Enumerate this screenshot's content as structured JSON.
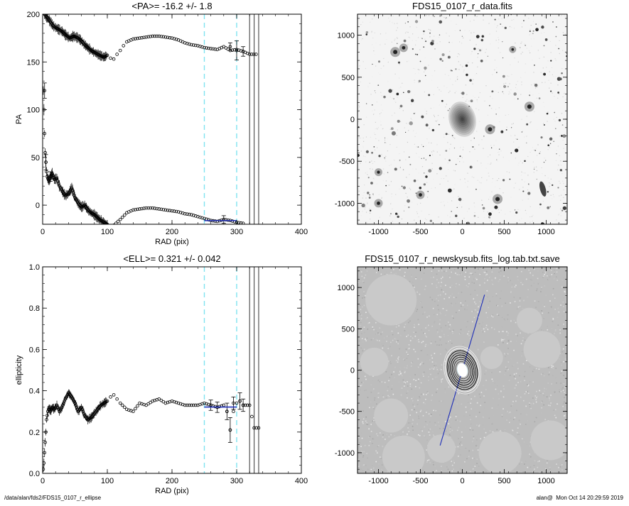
{
  "footer": {
    "path": "/data/alan/fds2/FDS15_0107_r_ellipse",
    "user": "alan@",
    "timestamp": "Mon Oct 14 20:29:59 2019"
  },
  "colors": {
    "data": "#000000",
    "mean_fit": "#1f2fb8",
    "dashed_guides": "#7fe3f0",
    "solid_guides": "#555555",
    "axis_line": "#1f2fb8"
  },
  "chart_data": [
    {
      "id": "pa",
      "type": "scatter",
      "title": "<PA>= -16.2 +/-   1.8",
      "xlabel": "RAD (pix)",
      "ylabel": "PA",
      "xlim": [
        0,
        400
      ],
      "ylim": [
        -20,
        200
      ],
      "xticks": [
        0,
        100,
        200,
        300,
        400
      ],
      "yticks": [
        0,
        50,
        100,
        150,
        200
      ],
      "grid": false,
      "guides": {
        "dashed": [
          250,
          300
        ],
        "solid": [
          320,
          327,
          334
        ]
      },
      "mean_fit": {
        "value": -16.2,
        "x_range": [
          250,
          300
        ]
      },
      "series": [
        {
          "x": [
            3,
            5,
            8,
            12,
            16,
            20,
            25,
            30,
            36,
            42,
            48,
            55,
            60,
            65,
            70,
            75,
            80,
            88,
            95,
            100,
            105,
            110,
            115,
            120,
            125,
            130,
            140,
            150,
            160,
            170,
            180,
            190,
            200,
            210,
            220,
            230,
            240,
            250,
            260,
            270,
            280,
            290,
            300,
            310,
            320,
            330
          ],
          "y": [
            200,
            198,
            196,
            192,
            188,
            186,
            184,
            182,
            178,
            175,
            177,
            175,
            172,
            168,
            165,
            162,
            160,
            157,
            155,
            157,
            154,
            153,
            158,
            162,
            167,
            171,
            174,
            175,
            176,
            177,
            177,
            176,
            175,
            173,
            170,
            168,
            167,
            165,
            164,
            163,
            166,
            162,
            163,
            161,
            158,
            158
          ]
        },
        {
          "x": [
            1,
            2,
            3,
            4,
            5,
            6,
            7,
            8,
            10,
            12,
            15,
            18,
            22,
            26,
            30,
            35,
            40,
            45,
            50,
            55,
            60,
            65,
            70,
            75,
            80,
            88,
            95,
            100,
            105,
            110,
            120,
            130,
            140,
            150,
            160,
            170,
            180,
            190,
            200,
            210,
            220,
            230,
            240,
            250,
            260,
            270,
            280,
            290,
            300,
            310
          ],
          "y": [
            120,
            100,
            75,
            55,
            45,
            35,
            30,
            28,
            25,
            30,
            33,
            27,
            28,
            20,
            15,
            10,
            12,
            18,
            8,
            2,
            -2,
            0,
            -5,
            -8,
            -10,
            -15,
            -18,
            -20,
            -22,
            -21,
            -15,
            -8,
            -5,
            -4,
            -3,
            -3,
            -4,
            -5,
            -6,
            -7,
            -9,
            -10,
            -12,
            -14,
            -16,
            -17,
            -15,
            -16,
            -18,
            -19
          ]
        }
      ],
      "error_bars": [
        {
          "x": 3,
          "y": 120,
          "err": 8
        },
        {
          "x": 5,
          "y": 45,
          "err": 8
        },
        {
          "x": 12,
          "y": 30,
          "err": 5
        },
        {
          "x": 280,
          "y": -15,
          "err": 4
        },
        {
          "x": 290,
          "y": 166,
          "err": 4
        },
        {
          "x": 300,
          "y": 162,
          "err": 10
        },
        {
          "x": 310,
          "y": 161,
          "err": 5
        }
      ]
    },
    {
      "id": "ell",
      "type": "scatter",
      "title": "<ELL>= 0.321 +/-  0.042",
      "xlabel": "RAD (pix)",
      "ylabel": "ellipticity",
      "xlim": [
        0,
        400
      ],
      "ylim": [
        0,
        1
      ],
      "xticks": [
        0,
        100,
        200,
        300,
        400
      ],
      "yticks": [
        0.0,
        0.2,
        0.4,
        0.6,
        0.8,
        1.0
      ],
      "tick_labels": [
        "0.0",
        "0.2",
        "0.4",
        "0.6",
        "0.8",
        "1.0"
      ],
      "grid": false,
      "guides": {
        "dashed": [
          250,
          300
        ],
        "solid": [
          320,
          327,
          334
        ]
      },
      "mean_fit": {
        "value": 0.321,
        "x_range": [
          250,
          300
        ]
      },
      "series": [
        {
          "x": [
            1,
            2,
            3,
            4,
            5,
            6,
            8,
            10,
            12,
            15,
            18,
            22,
            26,
            30,
            35,
            40,
            45,
            50,
            55,
            60,
            65,
            70,
            75,
            80,
            85,
            90,
            95,
            100,
            105,
            110,
            115,
            120,
            130,
            140,
            150,
            160,
            170,
            180,
            190,
            200,
            210,
            220,
            230,
            240,
            250,
            260,
            270,
            280,
            285,
            290,
            295,
            300,
            305,
            310,
            320,
            327,
            334
          ],
          "y": [
            0.02,
            0.05,
            0.1,
            0.15,
            0.2,
            0.26,
            0.3,
            0.32,
            0.3,
            0.32,
            0.31,
            0.33,
            0.3,
            0.32,
            0.36,
            0.39,
            0.37,
            0.34,
            0.3,
            0.32,
            0.28,
            0.26,
            0.27,
            0.29,
            0.31,
            0.33,
            0.34,
            0.35,
            0.37,
            0.38,
            0.36,
            0.34,
            0.31,
            0.3,
            0.34,
            0.33,
            0.35,
            0.36,
            0.34,
            0.35,
            0.34,
            0.33,
            0.33,
            0.33,
            0.34,
            0.33,
            0.32,
            0.33,
            0.3,
            0.21,
            0.3,
            0.34,
            0.35,
            0.33,
            0.33,
            0.22,
            0.22
          ]
        }
      ],
      "error_bars": [
        {
          "x": 260,
          "y": 0.33,
          "err": 0.025
        },
        {
          "x": 270,
          "y": 0.32,
          "err": 0.025
        },
        {
          "x": 285,
          "y": 0.3,
          "err": 0.04
        },
        {
          "x": 290,
          "y": 0.21,
          "err": 0.06
        },
        {
          "x": 295,
          "y": 0.34,
          "err": 0.03
        },
        {
          "x": 305,
          "y": 0.35,
          "err": 0.04
        },
        {
          "x": 310,
          "y": 0.33,
          "err": 0.03
        }
      ]
    },
    {
      "id": "image",
      "type": "heatmap",
      "title": "FDS15_0107_r_data.fits",
      "xlim": [
        -1250,
        1250
      ],
      "ylim": [
        -1250,
        1250
      ],
      "xticks": [
        -1000,
        -500,
        0,
        500,
        1000
      ],
      "yticks": [
        -1000,
        -500,
        0,
        500,
        1000
      ],
      "colormap": "inverted grayscale"
    },
    {
      "id": "model",
      "type": "heatmap",
      "title": "FDS15_0107_r_newskysub.fits_log.tab.txt.save",
      "xlim": [
        -1250,
        1250
      ],
      "ylim": [
        -1250,
        1250
      ],
      "xticks": [
        -1000,
        -500,
        0,
        500,
        1000
      ],
      "yticks": [
        -1000,
        -500,
        0,
        500,
        1000
      ],
      "major_axis_pa": -16.2,
      "colormap": "grayscale with isophote contours"
    }
  ]
}
